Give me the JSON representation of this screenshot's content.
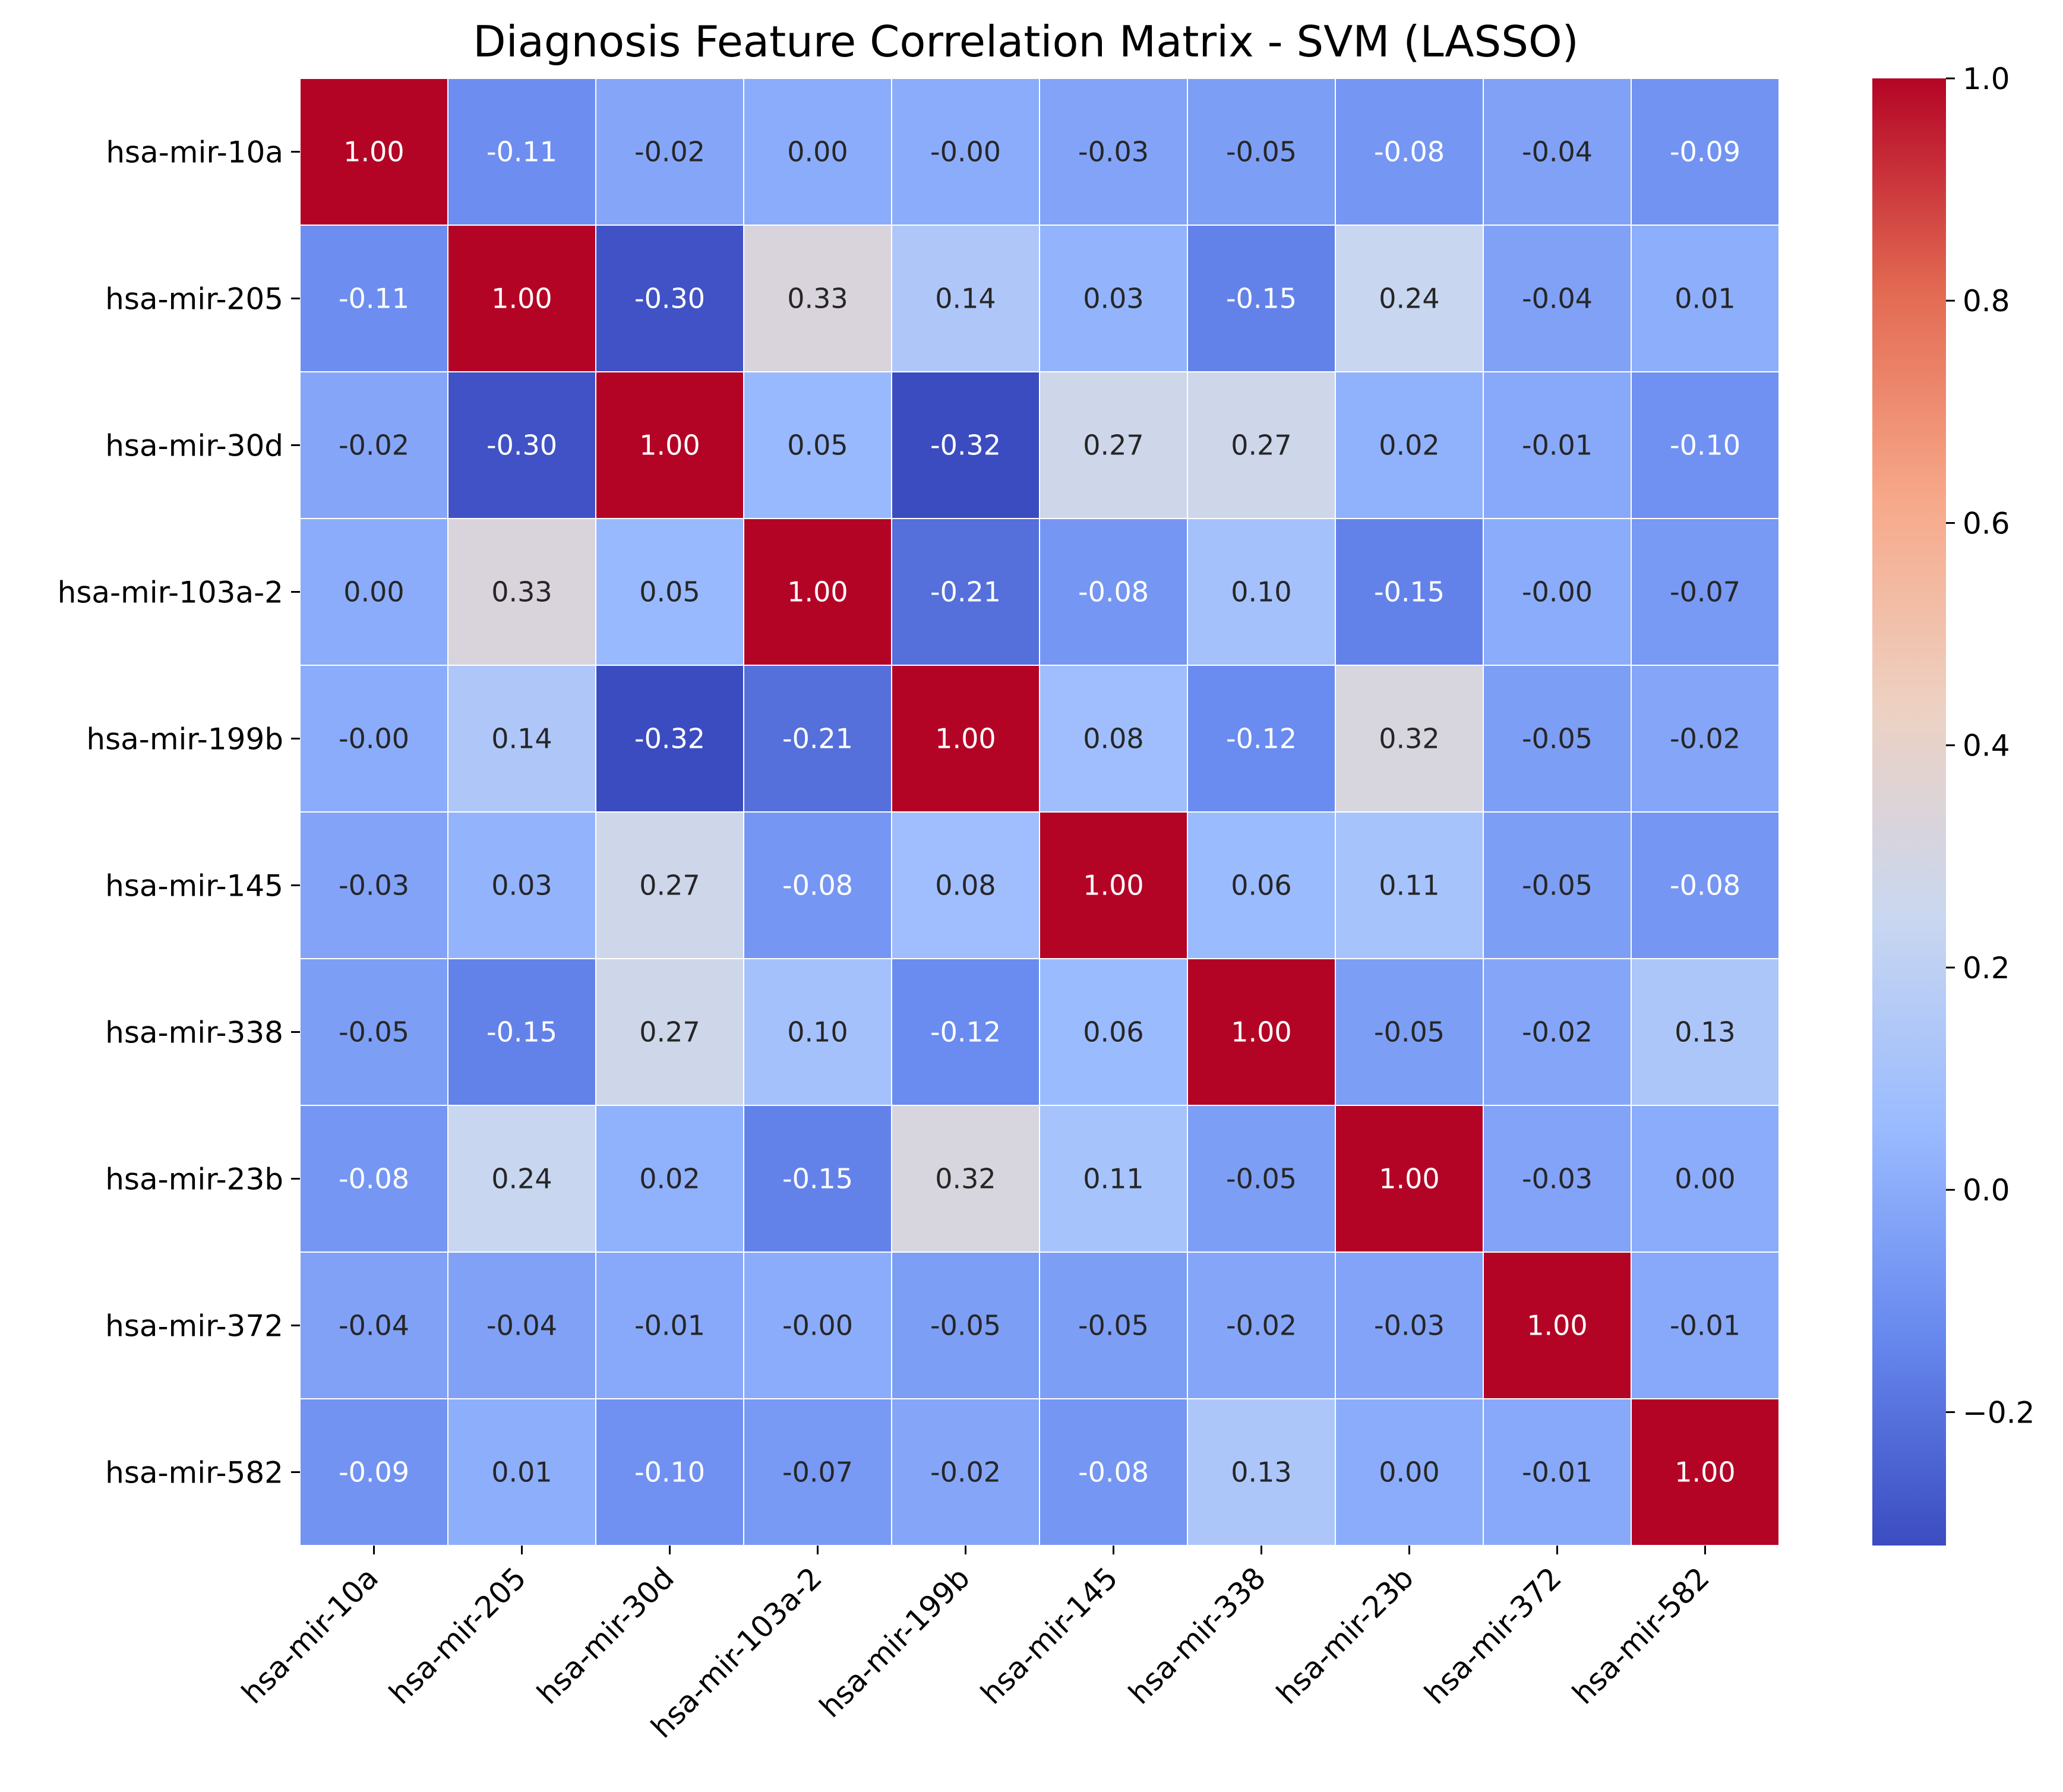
{
  "chart_data": {
    "type": "heatmap",
    "title": "Diagnosis Feature Correlation Matrix - SVM (LASSO)",
    "xlabel": "",
    "ylabel": "",
    "row_labels": [
      "hsa-mir-10a",
      "hsa-mir-205",
      "hsa-mir-30d",
      "hsa-mir-103a-2",
      "hsa-mir-199b",
      "hsa-mir-145",
      "hsa-mir-338",
      "hsa-mir-23b",
      "hsa-mir-372",
      "hsa-mir-582"
    ],
    "col_labels": [
      "hsa-mir-10a",
      "hsa-mir-205",
      "hsa-mir-30d",
      "hsa-mir-103a-2",
      "hsa-mir-199b",
      "hsa-mir-145",
      "hsa-mir-338",
      "hsa-mir-23b",
      "hsa-mir-372",
      "hsa-mir-582"
    ],
    "values": [
      [
        1.0,
        -0.11,
        -0.02,
        0.0,
        -0.0,
        -0.03,
        -0.05,
        -0.08,
        -0.04,
        -0.09
      ],
      [
        -0.11,
        1.0,
        -0.3,
        0.33,
        0.14,
        0.03,
        -0.15,
        0.24,
        -0.04,
        0.01
      ],
      [
        -0.02,
        -0.3,
        1.0,
        0.05,
        -0.32,
        0.27,
        0.27,
        0.02,
        -0.01,
        -0.1
      ],
      [
        0.0,
        0.33,
        0.05,
        1.0,
        -0.21,
        -0.08,
        0.1,
        -0.15,
        -0.0,
        -0.07
      ],
      [
        -0.0,
        0.14,
        -0.32,
        -0.21,
        1.0,
        0.08,
        -0.12,
        0.32,
        -0.05,
        -0.02
      ],
      [
        -0.03,
        0.03,
        0.27,
        -0.08,
        0.08,
        1.0,
        0.06,
        0.11,
        -0.05,
        -0.08
      ],
      [
        -0.05,
        -0.15,
        0.27,
        0.1,
        -0.12,
        0.06,
        1.0,
        -0.05,
        -0.02,
        0.13
      ],
      [
        -0.08,
        0.24,
        0.02,
        -0.15,
        0.32,
        0.11,
        -0.05,
        1.0,
        -0.03,
        0.0
      ],
      [
        -0.04,
        -0.04,
        -0.01,
        -0.0,
        -0.05,
        -0.05,
        -0.02,
        -0.03,
        1.0,
        -0.01
      ],
      [
        -0.09,
        0.01,
        -0.1,
        -0.07,
        -0.02,
        -0.08,
        0.13,
        0.0,
        -0.01,
        1.0
      ]
    ],
    "value_labels": [
      [
        "1.00",
        "-0.11",
        "-0.02",
        "0.00",
        "-0.00",
        "-0.03",
        "-0.05",
        "-0.08",
        "-0.04",
        "-0.09"
      ],
      [
        "-0.11",
        "1.00",
        "-0.30",
        "0.33",
        "0.14",
        "0.03",
        "-0.15",
        "0.24",
        "-0.04",
        "0.01"
      ],
      [
        "-0.02",
        "-0.30",
        "1.00",
        "0.05",
        "-0.32",
        "0.27",
        "0.27",
        "0.02",
        "-0.01",
        "-0.10"
      ],
      [
        "0.00",
        "0.33",
        "0.05",
        "1.00",
        "-0.21",
        "-0.08",
        "0.10",
        "-0.15",
        "-0.00",
        "-0.07"
      ],
      [
        "-0.00",
        "0.14",
        "-0.32",
        "-0.21",
        "1.00",
        "0.08",
        "-0.12",
        "0.32",
        "-0.05",
        "-0.02"
      ],
      [
        "-0.03",
        "0.03",
        "0.27",
        "-0.08",
        "0.08",
        "1.00",
        "0.06",
        "0.11",
        "-0.05",
        "-0.08"
      ],
      [
        "-0.05",
        "-0.15",
        "0.27",
        "0.10",
        "-0.12",
        "0.06",
        "1.00",
        "-0.05",
        "-0.02",
        "0.13"
      ],
      [
        "-0.08",
        "0.24",
        "0.02",
        "-0.15",
        "0.32",
        "0.11",
        "-0.05",
        "1.00",
        "-0.03",
        "0.00"
      ],
      [
        "-0.04",
        "-0.04",
        "-0.01",
        "-0.00",
        "-0.05",
        "-0.05",
        "-0.02",
        "-0.03",
        "1.00",
        "-0.01"
      ],
      [
        "-0.09",
        "0.01",
        "-0.10",
        "-0.07",
        "-0.02",
        "-0.08",
        "0.13",
        "0.00",
        "-0.01",
        "1.00"
      ]
    ],
    "colormap": "coolwarm",
    "colormap_stops": [
      "#3b4cc0",
      "#6788ee",
      "#9abbff",
      "#c9d7f0",
      "#edd1c2",
      "#f7a889",
      "#e26952",
      "#b40426"
    ],
    "vmin": -0.32,
    "vmax": 1.0,
    "colorbar": {
      "ticks": [
        -0.2,
        0.0,
        0.2,
        0.4,
        0.6,
        0.8,
        1.0
      ],
      "tick_labels": [
        "−0.2",
        "0.0",
        "0.2",
        "0.4",
        "0.6",
        "0.8",
        "1.0"
      ]
    },
    "grid": false,
    "cell_border_color": "#ffffff",
    "text_color_light": "#ffffff",
    "text_color_dark": "#262626"
  }
}
